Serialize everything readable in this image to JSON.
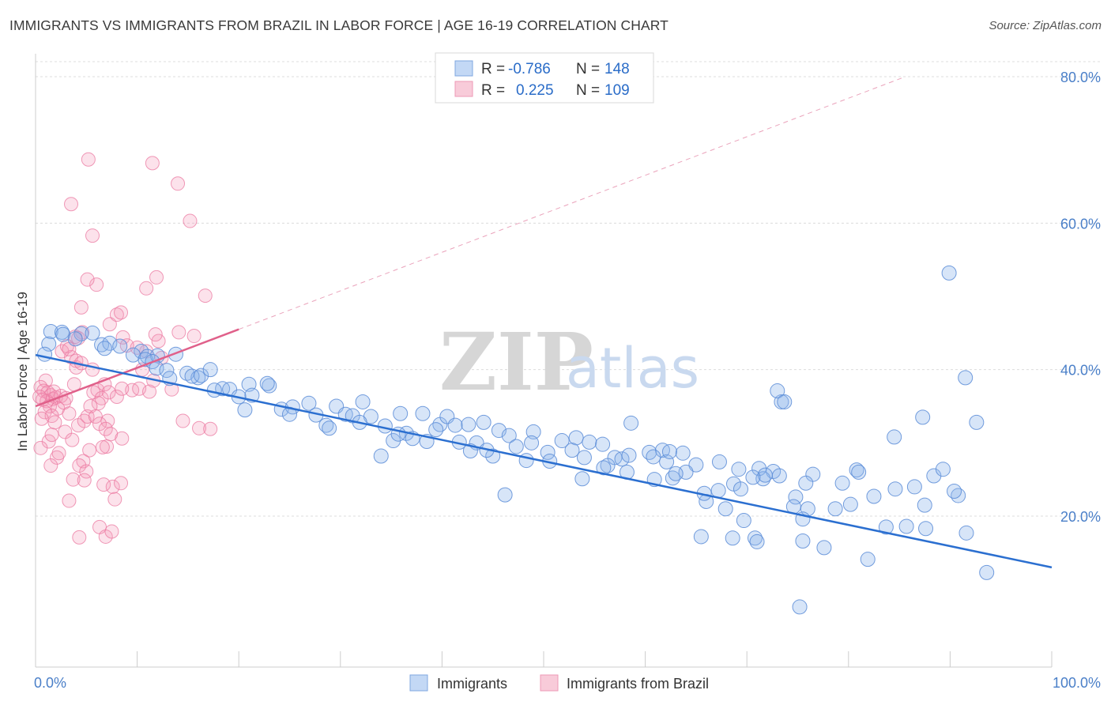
{
  "title": "IMMIGRANTS VS IMMIGRANTS FROM BRAZIL IN LABOR FORCE | AGE 16-19 CORRELATION CHART",
  "source": "Source: ZipAtlas.com",
  "watermark": {
    "zip": "ZIP",
    "atlas": "atlas"
  },
  "colors": {
    "blue": "#6fa0e0",
    "blue_line": "#2b6fd0",
    "pink": "#f08aab",
    "pink_line": "#e0608a",
    "tick_text": "#4a7fc8"
  },
  "legend": {
    "rows": [
      {
        "r_label": "R =",
        "r_value": "-0.786",
        "n_label": "N =",
        "n_value": "148"
      },
      {
        "r_label": "R =",
        "r_value": "0.225",
        "n_label": "N =",
        "n_value": "109"
      }
    ]
  },
  "chart_data": {
    "type": "scatter",
    "ylabel": "In Labor Force | Age 16-19",
    "xlim": [
      0,
      100
    ],
    "ylim": [
      0,
      85
    ],
    "y_ticks": [
      {
        "v": 20,
        "label": "20.0%"
      },
      {
        "v": 40,
        "label": "40.0%"
      },
      {
        "v": 60,
        "label": "60.0%"
      },
      {
        "v": 80,
        "label": "80.0%"
      }
    ],
    "x_tick_labels": [
      {
        "v": 0,
        "label": "0.0%"
      },
      {
        "v": 100,
        "label": "100.0%"
      }
    ],
    "grid": "horizontal dashed",
    "series": [
      {
        "name": "Immigrants",
        "color": "#6fa0e0",
        "trend": {
          "x0": 0,
          "y0": 42.0,
          "x1": 100,
          "y1": 13.0
        },
        "points": [
          [
            1.5,
            45.2
          ],
          [
            2.6,
            45.1
          ],
          [
            4.5,
            44.9
          ],
          [
            5.6,
            45.0
          ],
          [
            2.7,
            44.8
          ],
          [
            3.9,
            44.2
          ],
          [
            1.3,
            43.5
          ],
          [
            6.5,
            43.4
          ],
          [
            7.3,
            43.6
          ],
          [
            8.3,
            43.2
          ],
          [
            6.8,
            42.9
          ],
          [
            0.9,
            42.1
          ],
          [
            10.4,
            42.5
          ],
          [
            9.6,
            42.0
          ],
          [
            11.0,
            41.8
          ],
          [
            12.0,
            41.9
          ],
          [
            10.8,
            41.4
          ],
          [
            11.5,
            41.1
          ],
          [
            13.8,
            42.1
          ],
          [
            11.9,
            40.2
          ],
          [
            12.9,
            39.9
          ],
          [
            14.9,
            39.5
          ],
          [
            16.0,
            38.9
          ],
          [
            15.4,
            39.1
          ],
          [
            16.3,
            39.2
          ],
          [
            17.2,
            40.0
          ],
          [
            13.2,
            38.8
          ],
          [
            18.4,
            37.4
          ],
          [
            17.6,
            37.2
          ],
          [
            19.1,
            37.3
          ],
          [
            21.0,
            38.0
          ],
          [
            20.0,
            36.3
          ],
          [
            21.3,
            36.5
          ],
          [
            23.0,
            37.8
          ],
          [
            22.8,
            38.1
          ],
          [
            24.2,
            34.6
          ],
          [
            25.3,
            34.9
          ],
          [
            26.9,
            35.4
          ],
          [
            25.0,
            33.9
          ],
          [
            27.6,
            33.8
          ],
          [
            29.6,
            35.0
          ],
          [
            32.2,
            35.6
          ],
          [
            30.5,
            33.9
          ],
          [
            20.6,
            34.5
          ],
          [
            28.6,
            32.4
          ],
          [
            28.9,
            32.0
          ],
          [
            31.2,
            33.7
          ],
          [
            33.0,
            33.6
          ],
          [
            34.4,
            32.3
          ],
          [
            35.9,
            34.0
          ],
          [
            38.1,
            34.0
          ],
          [
            39.8,
            32.5
          ],
          [
            40.5,
            33.6
          ],
          [
            41.3,
            32.4
          ],
          [
            42.6,
            32.5
          ],
          [
            31.9,
            32.8
          ],
          [
            36.5,
            31.3
          ],
          [
            35.2,
            30.3
          ],
          [
            39.4,
            31.8
          ],
          [
            37.1,
            30.6
          ],
          [
            38.5,
            30.2
          ],
          [
            44.1,
            32.8
          ],
          [
            45.6,
            31.7
          ],
          [
            46.6,
            31.0
          ],
          [
            49.0,
            31.5
          ],
          [
            48.8,
            30.0
          ],
          [
            51.8,
            30.3
          ],
          [
            53.2,
            30.7
          ],
          [
            50.4,
            28.7
          ],
          [
            52.8,
            29.0
          ],
          [
            54.5,
            30.1
          ],
          [
            55.8,
            29.8
          ],
          [
            57.0,
            28.0
          ],
          [
            58.6,
            32.7
          ],
          [
            54.0,
            28.0
          ],
          [
            56.3,
            26.9
          ],
          [
            60.4,
            28.7
          ],
          [
            61.7,
            29.0
          ],
          [
            60.8,
            28.1
          ],
          [
            62.1,
            27.4
          ],
          [
            63.7,
            28.6
          ],
          [
            65.0,
            27.0
          ],
          [
            64.0,
            26.0
          ],
          [
            58.2,
            26.0
          ],
          [
            57.7,
            27.8
          ],
          [
            50.6,
            27.5
          ],
          [
            48.3,
            27.6
          ],
          [
            47.3,
            29.5
          ],
          [
            43.4,
            30.0
          ],
          [
            45.0,
            28.2
          ],
          [
            41.7,
            30.1
          ],
          [
            35.7,
            31.2
          ],
          [
            34.0,
            28.2
          ],
          [
            44.4,
            29.0
          ],
          [
            42.8,
            28.9
          ],
          [
            53.8,
            25.1
          ],
          [
            46.2,
            22.9
          ],
          [
            62.7,
            25.2
          ],
          [
            63.0,
            25.8
          ],
          [
            67.3,
            27.4
          ],
          [
            69.2,
            26.4
          ],
          [
            71.2,
            26.5
          ],
          [
            72.6,
            26.1
          ],
          [
            71.6,
            25.1
          ],
          [
            73.2,
            25.5
          ],
          [
            76.5,
            25.7
          ],
          [
            75.8,
            24.5
          ],
          [
            80.8,
            26.3
          ],
          [
            82.5,
            22.7
          ],
          [
            79.4,
            24.5
          ],
          [
            68.7,
            24.4
          ],
          [
            67.2,
            23.5
          ],
          [
            66.0,
            22.0
          ],
          [
            65.8,
            23.1
          ],
          [
            67.9,
            21.0
          ],
          [
            74.8,
            22.6
          ],
          [
            76.0,
            21.0
          ],
          [
            80.2,
            21.6
          ],
          [
            81.0,
            26.0
          ],
          [
            84.6,
            23.7
          ],
          [
            86.5,
            24.0
          ],
          [
            87.5,
            21.5
          ],
          [
            88.4,
            25.5
          ],
          [
            89.3,
            26.4
          ],
          [
            90.8,
            22.8
          ],
          [
            85.7,
            18.6
          ],
          [
            87.6,
            18.3
          ],
          [
            83.7,
            18.5
          ],
          [
            69.7,
            19.4
          ],
          [
            65.5,
            17.2
          ],
          [
            70.8,
            17.0
          ],
          [
            68.6,
            17.0
          ],
          [
            71.0,
            16.5
          ],
          [
            75.5,
            16.6
          ],
          [
            77.6,
            15.7
          ],
          [
            81.9,
            14.1
          ],
          [
            75.5,
            19.6
          ],
          [
            74.6,
            21.3
          ],
          [
            78.7,
            21.0
          ],
          [
            91.6,
            17.7
          ],
          [
            93.6,
            12.3
          ],
          [
            75.2,
            7.6
          ],
          [
            90.4,
            23.4
          ],
          [
            87.3,
            33.5
          ],
          [
            84.5,
            30.8
          ],
          [
            91.5,
            38.9
          ],
          [
            92.6,
            32.8
          ],
          [
            89.9,
            53.2
          ],
          [
            73.4,
            35.6
          ],
          [
            73.0,
            37.1
          ],
          [
            71.8,
            25.6
          ],
          [
            60.9,
            25.0
          ],
          [
            73.7,
            35.6
          ],
          [
            69.4,
            23.7
          ],
          [
            70.6,
            25.3
          ],
          [
            62.4,
            28.8
          ],
          [
            58.4,
            28.3
          ],
          [
            55.9,
            26.6
          ]
        ]
      },
      {
        "name": "Immigrants from Brazil",
        "color": "#f08aab",
        "trend": {
          "x0": 0,
          "y0": 35.0,
          "x1": 20,
          "y1": 45.5
        },
        "trend_ext": {
          "x0": 20,
          "y0": 45.5,
          "x1": 85.6,
          "y1": 80.0
        },
        "points": [
          [
            1.0,
            38.5
          ],
          [
            0.5,
            37.6
          ],
          [
            0.8,
            37.1
          ],
          [
            1.2,
            36.9
          ],
          [
            1.5,
            36.5
          ],
          [
            1.7,
            36.0
          ],
          [
            2.0,
            36.2
          ],
          [
            0.7,
            35.9
          ],
          [
            1.1,
            35.7
          ],
          [
            2.5,
            36.4
          ],
          [
            1.8,
            37.0
          ],
          [
            0.4,
            36.3
          ],
          [
            1.4,
            35.0
          ],
          [
            2.2,
            34.7
          ],
          [
            0.9,
            34.2
          ],
          [
            1.6,
            33.7
          ],
          [
            0.6,
            33.3
          ],
          [
            1.9,
            32.8
          ],
          [
            2.8,
            35.5
          ],
          [
            3.0,
            36.1
          ],
          [
            3.3,
            34.0
          ],
          [
            2.9,
            31.5
          ],
          [
            3.6,
            30.4
          ],
          [
            1.3,
            30.2
          ],
          [
            1.6,
            31.1
          ],
          [
            0.5,
            29.3
          ],
          [
            2.1,
            28.0
          ],
          [
            4.2,
            32.4
          ],
          [
            4.8,
            33.0
          ],
          [
            5.1,
            33.6
          ],
          [
            3.8,
            38.0
          ],
          [
            4.0,
            40.3
          ],
          [
            3.5,
            41.7
          ],
          [
            2.6,
            42.5
          ],
          [
            3.1,
            43.2
          ],
          [
            3.9,
            44.5
          ],
          [
            4.6,
            45.1
          ],
          [
            4.2,
            44.3
          ],
          [
            3.3,
            42.8
          ],
          [
            4.0,
            41.2
          ],
          [
            4.5,
            40.9
          ],
          [
            5.6,
            40.0
          ],
          [
            6.1,
            37.2
          ],
          [
            5.7,
            36.9
          ],
          [
            6.5,
            36.1
          ],
          [
            6.8,
            38.0
          ],
          [
            6.2,
            35.4
          ],
          [
            5.4,
            35.0
          ],
          [
            5.9,
            33.6
          ],
          [
            7.1,
            33.0
          ],
          [
            6.3,
            32.6
          ],
          [
            6.9,
            31.9
          ],
          [
            7.4,
            31.2
          ],
          [
            7.0,
            29.5
          ],
          [
            6.6,
            29.4
          ],
          [
            5.3,
            29.0
          ],
          [
            4.7,
            27.5
          ],
          [
            4.3,
            26.9
          ],
          [
            5.0,
            26.1
          ],
          [
            3.7,
            25.0
          ],
          [
            4.8,
            24.9
          ],
          [
            6.7,
            24.3
          ],
          [
            7.6,
            24.0
          ],
          [
            8.4,
            24.5
          ],
          [
            7.8,
            22.3
          ],
          [
            3.3,
            22.1
          ],
          [
            6.3,
            18.5
          ],
          [
            6.9,
            17.2
          ],
          [
            7.5,
            17.9
          ],
          [
            4.3,
            17.1
          ],
          [
            1.5,
            26.9
          ],
          [
            2.3,
            28.6
          ],
          [
            7.2,
            36.9
          ],
          [
            8.0,
            36.3
          ],
          [
            9.5,
            37.2
          ],
          [
            10.2,
            37.4
          ],
          [
            11.2,
            37.0
          ],
          [
            11.6,
            38.5
          ],
          [
            10.5,
            40.0
          ],
          [
            10.9,
            42.5
          ],
          [
            10.0,
            43.0
          ],
          [
            12.1,
            43.9
          ],
          [
            14.1,
            45.1
          ],
          [
            13.4,
            37.3
          ],
          [
            14.5,
            33.0
          ],
          [
            16.1,
            32.0
          ],
          [
            15.6,
            44.6
          ],
          [
            12.4,
            41.6
          ],
          [
            11.8,
            44.8
          ],
          [
            8.6,
            44.4
          ],
          [
            9.0,
            43.3
          ],
          [
            8.5,
            37.4
          ],
          [
            7.3,
            46.2
          ],
          [
            8.0,
            47.5
          ],
          [
            8.4,
            47.8
          ],
          [
            6.0,
            51.6
          ],
          [
            5.1,
            52.3
          ],
          [
            4.5,
            48.5
          ],
          [
            3.5,
            62.6
          ],
          [
            5.6,
            58.3
          ],
          [
            5.2,
            68.7
          ],
          [
            11.5,
            68.2
          ],
          [
            14.0,
            65.4
          ],
          [
            15.2,
            60.3
          ],
          [
            16.7,
            50.1
          ],
          [
            11.9,
            52.6
          ],
          [
            10.9,
            51.1
          ],
          [
            8.5,
            30.6
          ],
          [
            17.2,
            31.9
          ]
        ]
      }
    ]
  }
}
